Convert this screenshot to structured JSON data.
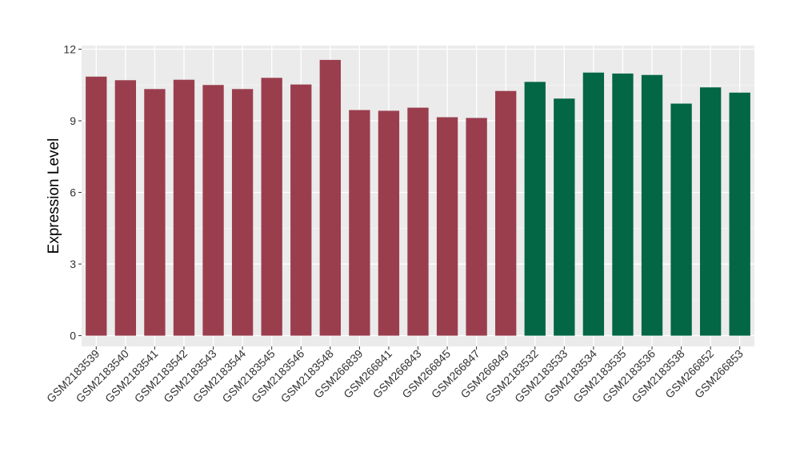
{
  "chart_data": {
    "type": "bar",
    "title": "",
    "xlabel": "",
    "ylabel": "Expression Level",
    "ylim": [
      -0.45,
      12.15
    ],
    "yticks": [
      0,
      3,
      6,
      9,
      12
    ],
    "grid": true,
    "background": "#EBEBEB",
    "categories": [
      "GSM2183539",
      "GSM2183540",
      "GSM2183541",
      "GSM2183542",
      "GSM2183543",
      "GSM2183544",
      "GSM2183545",
      "GSM2183546",
      "GSM2183548",
      "GSM266839",
      "GSM266841",
      "GSM266843",
      "GSM266845",
      "GSM266847",
      "GSM266849",
      "GSM2183532",
      "GSM2183533",
      "GSM2183534",
      "GSM2183535",
      "GSM2183536",
      "GSM2183538",
      "GSM266852",
      "GSM266853"
    ],
    "values": [
      10.85,
      10.7,
      10.33,
      10.72,
      10.5,
      10.33,
      10.8,
      10.52,
      11.55,
      9.45,
      9.42,
      9.55,
      9.15,
      9.12,
      10.25,
      10.63,
      9.93,
      11.02,
      10.98,
      10.92,
      9.72,
      10.4,
      10.18
    ],
    "group_colors": [
      "#9A3E4E",
      "#036645"
    ],
    "groups": [
      0,
      0,
      0,
      0,
      0,
      0,
      0,
      0,
      0,
      0,
      0,
      0,
      0,
      0,
      0,
      1,
      1,
      1,
      1,
      1,
      1,
      1,
      1
    ]
  }
}
